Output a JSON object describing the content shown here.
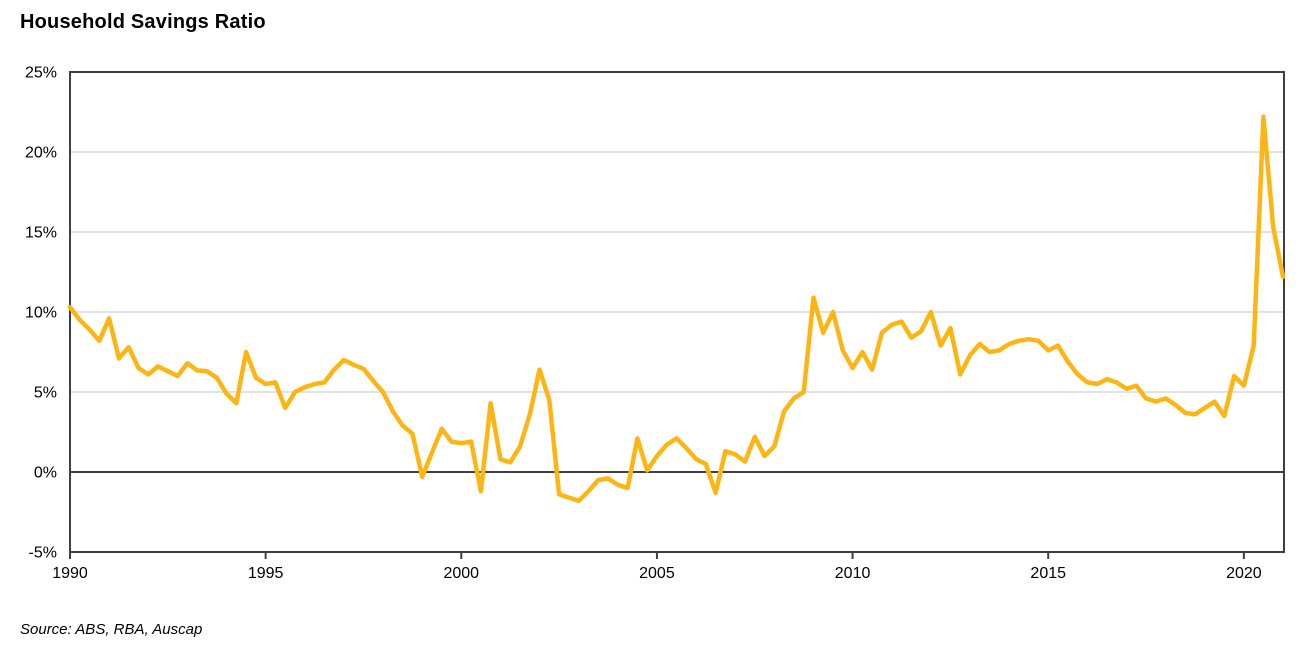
{
  "header": {
    "title": "Household Savings Ratio"
  },
  "footer": {
    "source": "Source: ABS, RBA, Auscap"
  },
  "chart_data": {
    "type": "line",
    "title": "Household Savings Ratio",
    "unit": "percent",
    "frequency": "quarterly",
    "start_period": "Dec-1989",
    "end_period": "Dec-2020",
    "xlim": [
      1990,
      2021.05
    ],
    "ylim": [
      -5,
      25
    ],
    "grid": "horizontal-only",
    "legend": "none",
    "line_color": "#FDB515",
    "grid_color": "#D8D8D8",
    "axis_color": "#3F3F3F",
    "text_color": "#000000",
    "x_ticks": [
      {
        "label": "1990",
        "year": 1990
      },
      {
        "label": "1995",
        "year": 1995
      },
      {
        "label": "2000",
        "year": 2000
      },
      {
        "label": "2005",
        "year": 2005
      },
      {
        "label": "2010",
        "year": 2010
      },
      {
        "label": "2015",
        "year": 2015
      },
      {
        "label": "2020",
        "year": 2020
      }
    ],
    "y_ticks": [
      {
        "label": "25%",
        "value": 25
      },
      {
        "label": "20%",
        "value": 20
      },
      {
        "label": "15%",
        "value": 15
      },
      {
        "label": "10%",
        "value": 10
      },
      {
        "label": "5%",
        "value": 5
      },
      {
        "label": "0%",
        "value": 0
      },
      {
        "label": "-5%",
        "value": -5
      }
    ],
    "series": [
      {
        "name": "Household savings ratio",
        "values": [
          10.3,
          9.5,
          8.9,
          8.2,
          9.6,
          7.1,
          7.8,
          6.5,
          6.1,
          6.6,
          6.3,
          6.0,
          6.8,
          6.35,
          6.3,
          5.9,
          4.9,
          4.3,
          7.5,
          5.9,
          5.5,
          5.6,
          4.0,
          5.0,
          5.3,
          5.5,
          5.6,
          6.4,
          7.0,
          6.7,
          6.45,
          5.7,
          5.0,
          3.8,
          2.9,
          2.4,
          -0.3,
          1.2,
          2.7,
          1.9,
          1.8,
          1.9,
          -1.2,
          4.3,
          0.8,
          0.6,
          1.6,
          3.6,
          6.4,
          4.5,
          -1.4,
          -1.6,
          -1.8,
          -1.2,
          -0.5,
          -0.4,
          -0.8,
          -1.0,
          2.1,
          0.1,
          1.0,
          1.7,
          2.1,
          1.5,
          0.8,
          0.5,
          -1.3,
          1.3,
          1.1,
          0.65,
          2.2,
          1.0,
          1.6,
          3.8,
          4.6,
          5.0,
          10.9,
          8.7,
          10.0,
          7.6,
          6.5,
          7.5,
          6.4,
          8.7,
          9.2,
          9.4,
          8.4,
          8.8,
          10.0,
          7.9,
          9.0,
          6.1,
          7.3,
          8.0,
          7.5,
          7.6,
          8.0,
          8.2,
          8.3,
          8.2,
          7.6,
          7.9,
          6.9,
          6.1,
          5.6,
          5.5,
          5.8,
          5.6,
          5.2,
          5.4,
          4.6,
          4.4,
          4.6,
          4.2,
          3.7,
          3.6,
          4.0,
          4.4,
          3.5,
          6.0,
          5.4,
          7.9,
          22.2,
          15.3,
          12.2
        ]
      }
    ]
  }
}
